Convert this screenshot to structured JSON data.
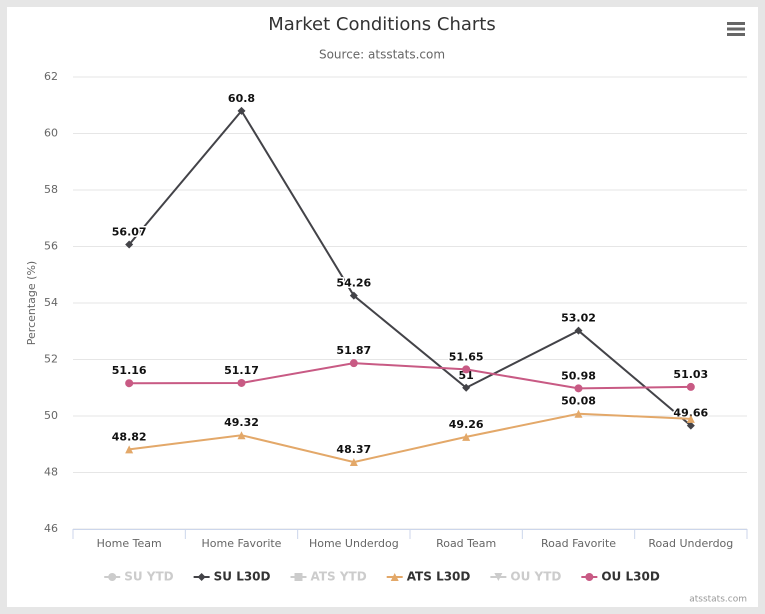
{
  "chart_data": {
    "type": "line",
    "title": "Market Conditions Charts",
    "subtitle": "Source: atsstats.com",
    "y_label": "Percentage (%)",
    "credits": "atsstats.com",
    "categories": [
      "Home Team",
      "Home Favorite",
      "Home Underdog",
      "Road Team",
      "Road Favorite",
      "Road Underdog"
    ],
    "series": [
      {
        "name": "SU YTD",
        "color": "#cccccc",
        "marker": "circle",
        "visible": false
      },
      {
        "name": "SU L30D",
        "color": "#434348",
        "marker": "diamond",
        "visible": true,
        "values": [
          56.07,
          60.8,
          54.26,
          51,
          53.02,
          49.66
        ]
      },
      {
        "name": "ATS YTD",
        "color": "#cccccc",
        "marker": "square",
        "visible": false
      },
      {
        "name": "ATS L30D",
        "color": "#e3a869",
        "marker": "triangle",
        "visible": true,
        "values": [
          48.82,
          49.32,
          48.37,
          49.26,
          50.08,
          49.9
        ],
        "value_labels": [
          "48.82",
          "49.32",
          "48.37",
          "49.26",
          "50.08",
          null
        ]
      },
      {
        "name": "OU YTD",
        "color": "#cccccc",
        "marker": "triangle-down",
        "visible": false
      },
      {
        "name": "OU L30D",
        "color": "#c85a84",
        "marker": "circle",
        "visible": true,
        "values": [
          51.16,
          51.17,
          51.87,
          51.65,
          50.98,
          51.03
        ]
      }
    ],
    "ylim": [
      46,
      62
    ],
    "yticks": [
      46,
      48,
      50,
      52,
      54,
      56,
      58,
      60,
      62
    ],
    "grid": true,
    "legend": "bottom"
  }
}
